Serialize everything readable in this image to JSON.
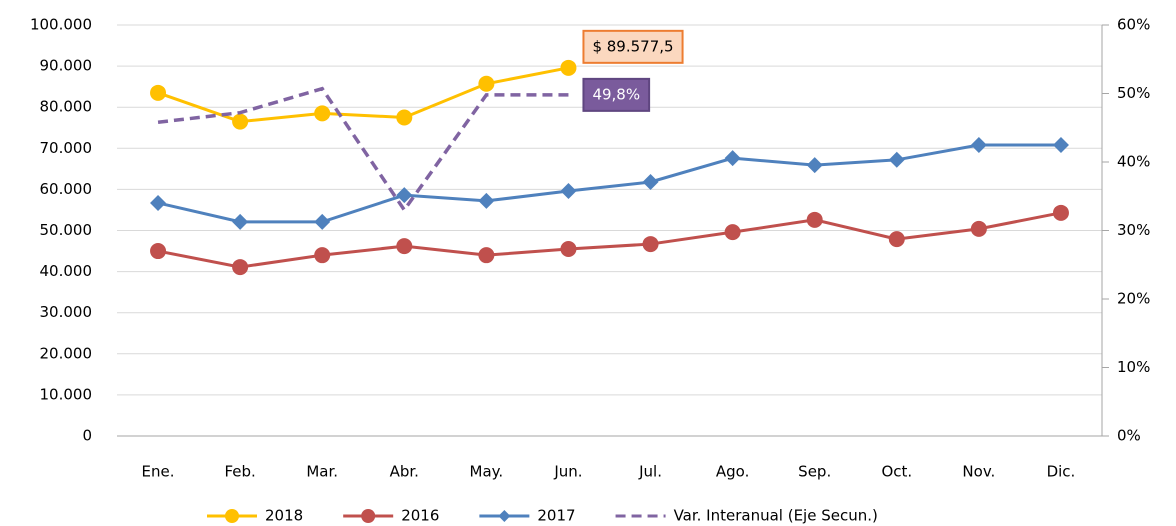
{
  "chart_data": {
    "type": "line",
    "categories": [
      "Ene.",
      "Feb.",
      "Mar.",
      "Abr.",
      "May.",
      "Jun.",
      "Jul.",
      "Ago.",
      "Sep.",
      "Oct.",
      "Nov.",
      "Dic."
    ],
    "series": [
      {
        "name": "2018",
        "color": "#ffc000",
        "marker": "circle",
        "values": [
          83500,
          76500,
          78500,
          77500,
          85700,
          89577.5,
          null,
          null,
          null,
          null,
          null,
          null
        ],
        "value_labels": [
          null,
          null,
          null,
          null,
          null,
          "$ 89.577,5",
          null,
          null,
          null,
          null,
          null,
          null
        ]
      },
      {
        "name": "2016",
        "color": "#c0504d",
        "marker": "circle",
        "values": [
          45000,
          41100,
          44000,
          46200,
          44000,
          45500,
          46700,
          49600,
          52600,
          47900,
          50400,
          54300
        ]
      },
      {
        "name": "2017",
        "color": "#4f81bd",
        "marker": "diamond",
        "values": [
          56700,
          52100,
          52100,
          58600,
          57200,
          59600,
          61800,
          67600,
          65900,
          67200,
          70800,
          70800
        ]
      },
      {
        "name": "Var. Interanual (Eje Secun.)",
        "color": "#8064a2",
        "axis": "y2",
        "dashed": true,
        "values": [
          45.8,
          47.2,
          50.7,
          33.0,
          49.8,
          49.8,
          null,
          null,
          null,
          null,
          null,
          null
        ],
        "value_labels": [
          null,
          null,
          null,
          null,
          null,
          "49,8%",
          null,
          null,
          null,
          null,
          null,
          null
        ]
      }
    ],
    "ylim": [
      0,
      100000
    ],
    "yticks": [
      0,
      {
        "value": 10000,
        "label": "10.000"
      },
      {
        "value": 20000,
        "label": "20.000"
      },
      {
        "value": 30000,
        "label": "30.000"
      },
      {
        "value": 40000,
        "label": "40.000"
      },
      {
        "value": 50000,
        "label": "50.000"
      },
      {
        "value": 60000,
        "label": "60.000"
      },
      {
        "value": 70000,
        "label": "70.000"
      },
      {
        "value": 80000,
        "label": "80.000"
      },
      {
        "value": 90000,
        "label": "90.000"
      },
      {
        "value": 100000,
        "label": "100.000"
      }
    ],
    "y2lim": [
      0,
      60
    ],
    "y2ticks": [
      {
        "value": 0,
        "label": "0%"
      },
      {
        "value": 10,
        "label": "10%"
      },
      {
        "value": 20,
        "label": "20%"
      },
      {
        "value": 30,
        "label": "30%"
      },
      {
        "value": 40,
        "label": "40%"
      },
      {
        "value": 50,
        "label": "50%"
      },
      {
        "value": 60,
        "label": "60%"
      }
    ],
    "grid": true,
    "legend": "bottom"
  }
}
